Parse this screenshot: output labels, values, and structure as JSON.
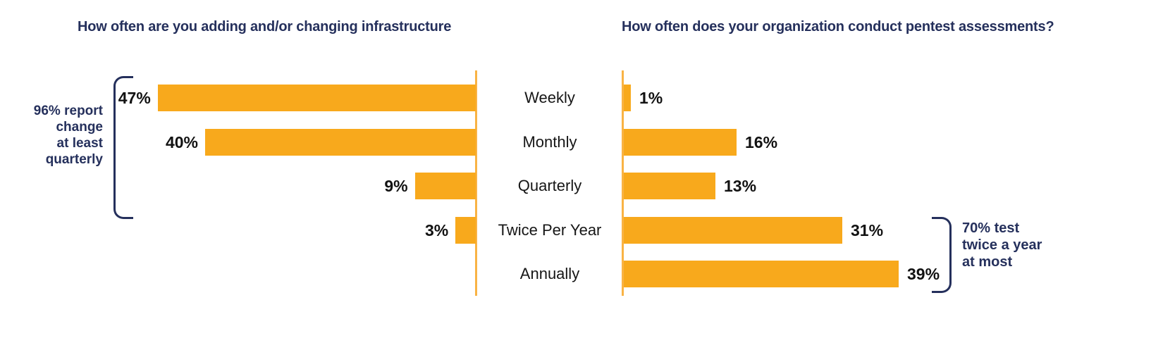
{
  "charts": {
    "left": {
      "title": "How often are you adding and/or changing infrastructure",
      "annotation_display": "96% report\nchange\nat least\nquarterly"
    },
    "right": {
      "title": "How often does your organization conduct pentest assessments?",
      "annotation_display": "70% test\ntwice a year\nat most"
    }
  },
  "chart_data": {
    "type": "bar",
    "orientation": "horizontal",
    "layout": "back-to-back butterfly chart, shared category labels in the center",
    "categories": [
      "Weekly",
      "Monthly",
      "Quarterly",
      "Twice Per Year",
      "Annually"
    ],
    "series": [
      {
        "name": "How often are you adding and/or changing infrastructure",
        "side": "left",
        "values": [
          47,
          40,
          9,
          3,
          null
        ]
      },
      {
        "name": "How often does your organization conduct pentest assessments?",
        "side": "right",
        "values": [
          1,
          16,
          13,
          31,
          39
        ]
      }
    ],
    "value_suffix": "%",
    "annotations": [
      {
        "text": "96% report change at least quarterly",
        "side": "left",
        "spans_categories": [
          "Weekly",
          "Monthly",
          "Quarterly"
        ]
      },
      {
        "text": "70% test twice a year at most",
        "side": "right",
        "spans_categories": [
          "Twice Per Year",
          "Annually"
        ]
      }
    ],
    "colors": {
      "bar": "#F8A91C",
      "axis_line": "#F9B344",
      "title_text": "#25305C",
      "annotation_text": "#25305C",
      "value_label_text": "#121212",
      "category_label_text": "#161616",
      "background": "#FFFFFF"
    },
    "grid": false,
    "legend": false,
    "value_labels_shown": true
  }
}
